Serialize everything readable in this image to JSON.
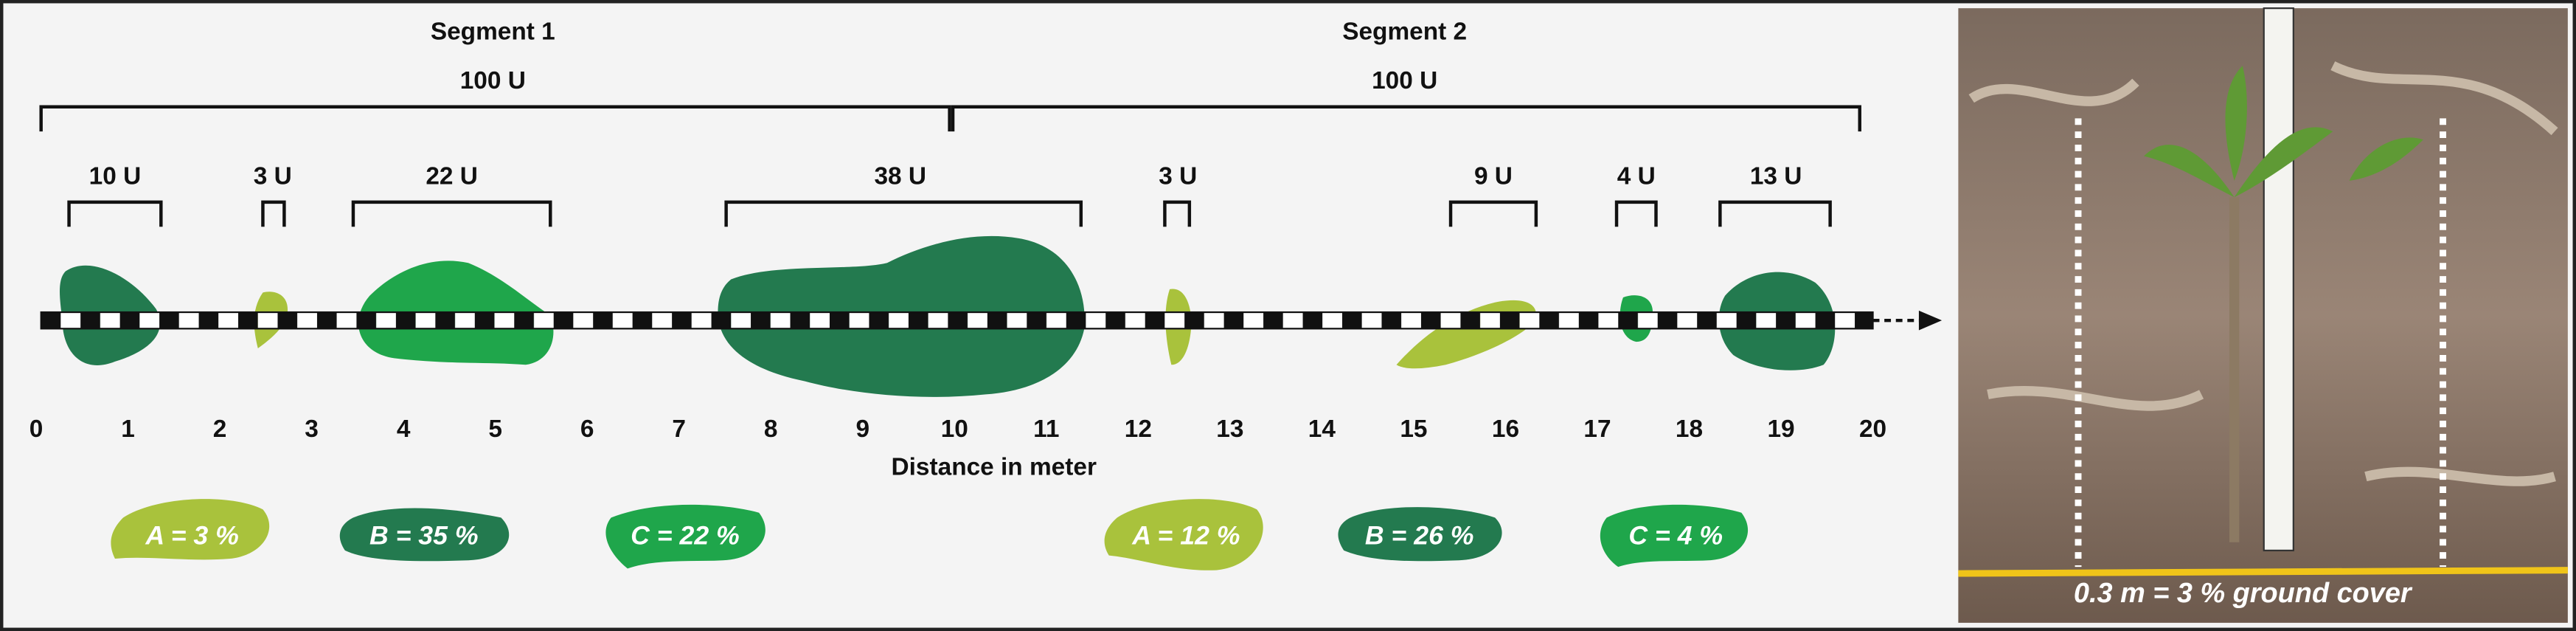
{
  "segments": [
    {
      "title": "Segment 1",
      "total": "100 U"
    },
    {
      "title": "Segment 2",
      "total": "100 U"
    }
  ],
  "brackets": [
    "10 U",
    "3 U",
    "22 U",
    "38 U",
    "3 U",
    "9 U",
    "4 U",
    "13 U"
  ],
  "axis": {
    "ticks": [
      0,
      1,
      2,
      3,
      4,
      5,
      6,
      7,
      8,
      9,
      10,
      11,
      12,
      13,
      14,
      15,
      16,
      17,
      18,
      19,
      20
    ],
    "label": "Distance in meter"
  },
  "legend": [
    "A = 3 %",
    "B = 35 %",
    "C = 22 %",
    "A = 12 %",
    "B = 26 %",
    "C = 4 %"
  ],
  "photo": {
    "caption": "0.3 m = 3 % ground cover"
  }
}
